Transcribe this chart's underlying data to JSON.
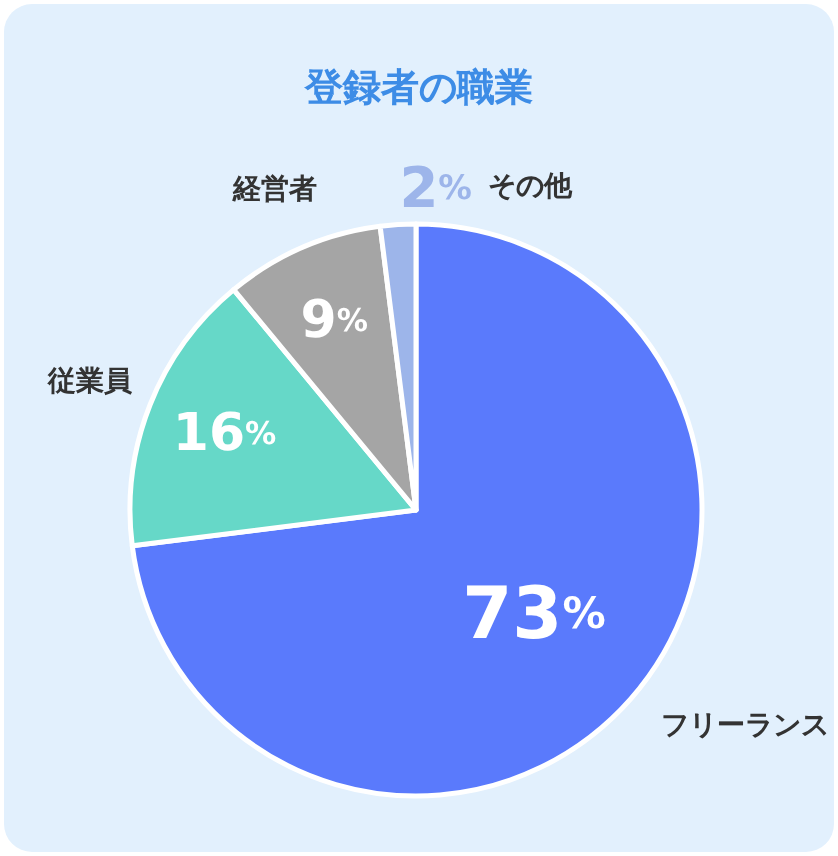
{
  "chart_data": {
    "type": "pie",
    "title": "登録者の職業",
    "categories": [
      "フリーランス",
      "従業員",
      "経営者",
      "その他"
    ],
    "values": [
      73,
      16,
      9,
      2
    ],
    "value_labels": [
      "73%",
      "16%",
      "9%",
      "2%"
    ],
    "colors": [
      "#5a7afc",
      "#66d8c8",
      "#a5a5a5",
      "#9db5ea"
    ]
  }
}
